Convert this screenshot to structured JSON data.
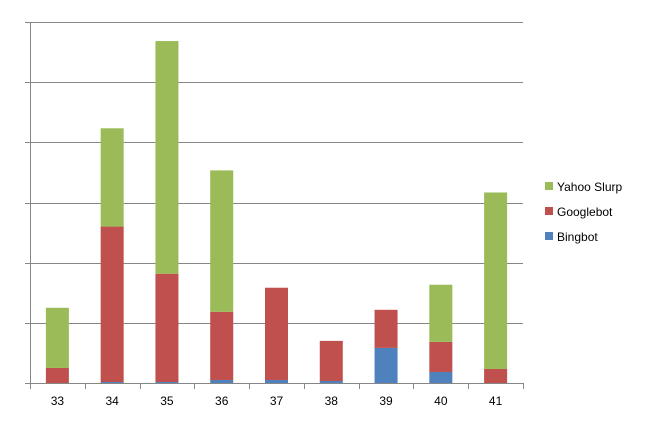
{
  "chart_data": {
    "type": "bar",
    "stacked": true,
    "categories": [
      "33",
      "34",
      "35",
      "36",
      "37",
      "38",
      "39",
      "40",
      "41"
    ],
    "series": [
      {
        "name": "Bingbot",
        "color": "#4f81bd",
        "values": [
          0,
          1,
          1,
          3,
          3,
          2,
          35,
          11,
          0
        ]
      },
      {
        "name": "Googlebot",
        "color": "#c0504d",
        "values": [
          15,
          155,
          108,
          68,
          92,
          40,
          38,
          30,
          14
        ]
      },
      {
        "name": "Yahoo Slurp",
        "color": "#9bbb59",
        "values": [
          60,
          98,
          232,
          141,
          0,
          0,
          0,
          57,
          176
        ]
      }
    ],
    "ylim": [
      0,
      360
    ],
    "y_tick_count": 6,
    "grid": true,
    "y_tick_labels_shown": false,
    "legend_position": "right",
    "title": "",
    "xlabel": "",
    "ylabel": ""
  }
}
